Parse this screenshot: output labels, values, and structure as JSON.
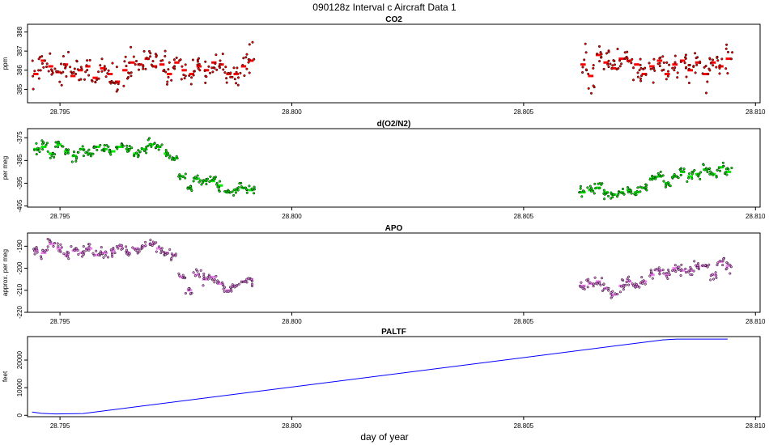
{
  "page_title": "090128z   Interval c Aircraft Data 1",
  "xlabel": "day of year",
  "colors": {
    "co2": "#ff0000",
    "o2n2": "#00ee00",
    "apo": "#ee82ee",
    "paltf": "#0000ff",
    "points": "#000000"
  },
  "chart_data": [
    {
      "type": "scatter",
      "title": "CO2",
      "ylabel": "ppm",
      "xlim": [
        28.7943,
        28.8101
      ],
      "ylim": [
        384.3,
        388.4
      ],
      "yticks": [
        "385",
        "386",
        "387",
        "388"
      ],
      "ytick_values": [
        385,
        386,
        387,
        388
      ],
      "xticks": [
        "28.795",
        "28.800",
        "28.805",
        "28.810"
      ],
      "xtick_values": [
        28.795,
        28.8,
        28.805,
        28.81
      ],
      "segments": [
        [
          28.7944,
          28.7992
        ],
        [
          28.8062,
          28.8095
        ]
      ],
      "means": [
        385.8,
        386.5,
        386.2,
        385.9,
        386.3,
        385.7,
        386.0,
        386.2,
        385.6,
        386.1,
        385.8,
        385.4,
        386.0,
        386.4,
        386.3,
        386.6,
        386.2,
        386.3,
        385.8,
        386.4,
        386.0,
        385.8,
        386.2,
        386.0,
        386.4,
        386.3,
        385.8,
        385.8,
        386.2,
        386.5,
        386.3,
        385.7,
        386.8,
        386.4,
        386.1,
        386.6,
        386.5,
        386.3,
        385.8,
        386.2,
        386.5,
        385.8,
        386.3,
        386.5,
        386.0,
        386.4,
        385.8,
        386.4,
        386.2,
        386.6
      ],
      "noise": 0.55
    },
    {
      "type": "scatter",
      "title": "d(O2/N2)",
      "ylabel": "per meg",
      "xlim": [
        28.7943,
        28.8101
      ],
      "ylim": [
        -405.5,
        -371
      ],
      "yticks": [
        "-375",
        "-385",
        "-395",
        "-405"
      ],
      "ytick_values": [
        -375,
        -385,
        -395,
        -405
      ],
      "xticks": [
        "28.795",
        "28.800",
        "28.805",
        "28.810"
      ],
      "xtick_values": [
        28.795,
        28.8,
        28.805,
        28.81
      ],
      "segments": [
        [
          28.7944,
          28.7992
        ],
        [
          28.8062,
          28.8095
        ]
      ],
      "means": [
        -380,
        -379,
        -382,
        -378,
        -381,
        -383,
        -380,
        -382,
        -379,
        -380,
        -381,
        -379,
        -380,
        -382,
        -380,
        -378,
        -379,
        -382,
        -384,
        -392,
        -397,
        -393,
        -394,
        -394,
        -396,
        -399,
        -398,
        -397,
        -398,
        -399,
        -398,
        -397,
        -399,
        -400,
        -399,
        -398,
        -399,
        -397,
        -393,
        -392,
        -395,
        -392,
        -390,
        -392,
        -391,
        -389,
        -391,
        -388,
        -390
      ],
      "noise": 1.6
    },
    {
      "type": "scatter",
      "title": "APO",
      "ylabel": "approx. per meg",
      "xlim": [
        28.7943,
        28.8101
      ],
      "ylim": [
        -220,
        -184
      ],
      "yticks": [
        "-190",
        "-200",
        "-210",
        "-220"
      ],
      "ytick_values": [
        -190,
        -200,
        -210,
        -220
      ],
      "xticks": [
        "28.795",
        "28.800",
        "28.805",
        "28.810"
      ],
      "xtick_values": [
        28.795,
        28.8,
        28.805,
        28.81
      ],
      "segments": [
        [
          28.7944,
          28.7992
        ],
        [
          28.8062,
          28.8095
        ]
      ],
      "means": [
        -192,
        -193,
        -189,
        -191,
        -194,
        -192,
        -193,
        -191,
        -194,
        -193,
        -192,
        -190,
        -193,
        -191,
        -190,
        -189,
        -191,
        -193,
        -194,
        -204,
        -210,
        -203,
        -205,
        -204,
        -207,
        -210,
        -208,
        -206,
        -205,
        -208,
        -207,
        -206,
        -209,
        -212,
        -208,
        -206,
        -208,
        -206,
        -203,
        -201,
        -203,
        -200,
        -201,
        -201,
        -199,
        -199,
        -203,
        -197,
        -199
      ],
      "noise": 1.6
    },
    {
      "type": "line",
      "title": "PALTF",
      "ylabel": "feet",
      "xlim": [
        28.7943,
        28.8101
      ],
      "ylim": [
        -500,
        28500
      ],
      "yticks": [
        "0",
        "10000",
        "20000"
      ],
      "ytick_values": [
        0,
        10000,
        20000
      ],
      "xticks": [
        "28.795",
        "28.800",
        "28.805",
        "28.810"
      ],
      "xtick_values": [
        28.795,
        28.8,
        28.805,
        28.81
      ],
      "x": [
        28.7944,
        28.7946,
        28.7949,
        28.7952,
        28.7955,
        28.808,
        28.8083,
        28.8094
      ],
      "y": [
        1200,
        700,
        500,
        550,
        650,
        27300,
        27600,
        27600
      ]
    }
  ]
}
